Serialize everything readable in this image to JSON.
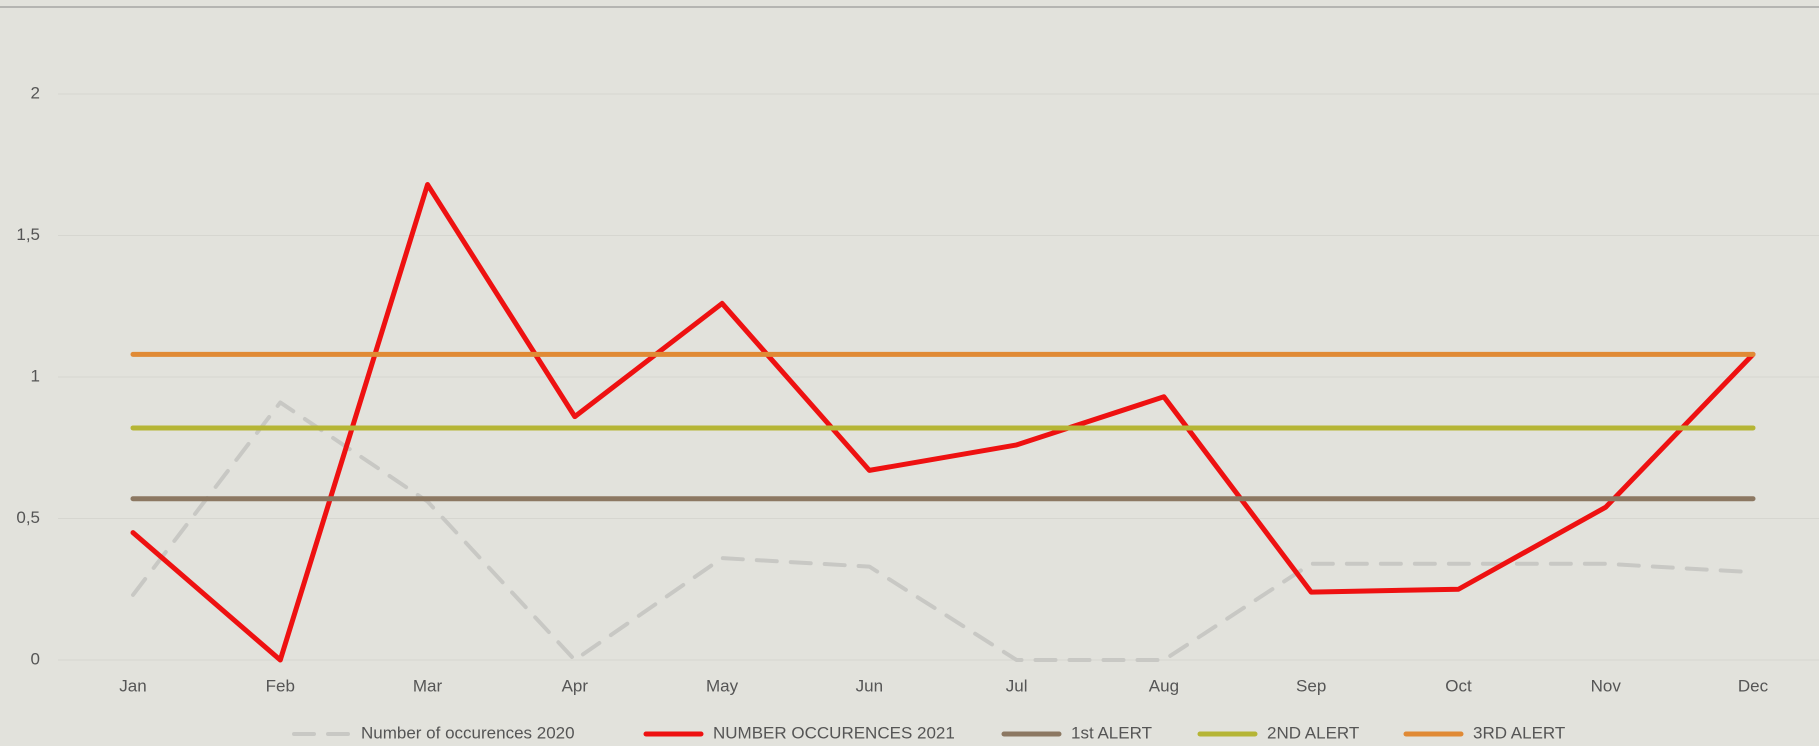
{
  "chart_data": {
    "type": "line",
    "categories": [
      "Jan",
      "Feb",
      "Mar",
      "Apr",
      "May",
      "Jun",
      "Jul",
      "Aug",
      "Sep",
      "Oct",
      "Nov",
      "Dec"
    ],
    "series": [
      {
        "name": "Number of occurences 2020",
        "color": "#c8c8c4",
        "dash": true,
        "values": [
          0.23,
          0.91,
          0.56,
          0,
          0.36,
          0.33,
          0,
          0,
          0.34,
          0.34,
          0.34,
          0.31
        ]
      },
      {
        "name": "NUMBER OCCURENCES 2021",
        "color": "#ee1111",
        "dash": false,
        "values": [
          0.45,
          0,
          1.68,
          0.86,
          1.26,
          0.67,
          0.76,
          0.93,
          0.24,
          0.25,
          0.54,
          1.08
        ]
      },
      {
        "name": "1st ALERT",
        "color": "#8c7862",
        "dash": false,
        "values": [
          0.57,
          0.57,
          0.57,
          0.57,
          0.57,
          0.57,
          0.57,
          0.57,
          0.57,
          0.57,
          0.57,
          0.57
        ]
      },
      {
        "name": "2ND ALERT",
        "color": "#b5b535",
        "dash": false,
        "values": [
          0.82,
          0.82,
          0.82,
          0.82,
          0.82,
          0.82,
          0.82,
          0.82,
          0.82,
          0.82,
          0.82,
          0.82
        ]
      },
      {
        "name": "3RD ALERT",
        "color": "#e08a35",
        "dash": false,
        "values": [
          1.08,
          1.08,
          1.08,
          1.08,
          1.08,
          1.08,
          1.08,
          1.08,
          1.08,
          1.08,
          1.08,
          1.08
        ]
      }
    ],
    "ylim": [
      0,
      2.2
    ],
    "yticks": [
      0,
      {
        "value": 0.5,
        "label": "0,5"
      },
      1,
      {
        "value": 1.5,
        "label": "1,5"
      },
      2
    ],
    "grid": true
  }
}
